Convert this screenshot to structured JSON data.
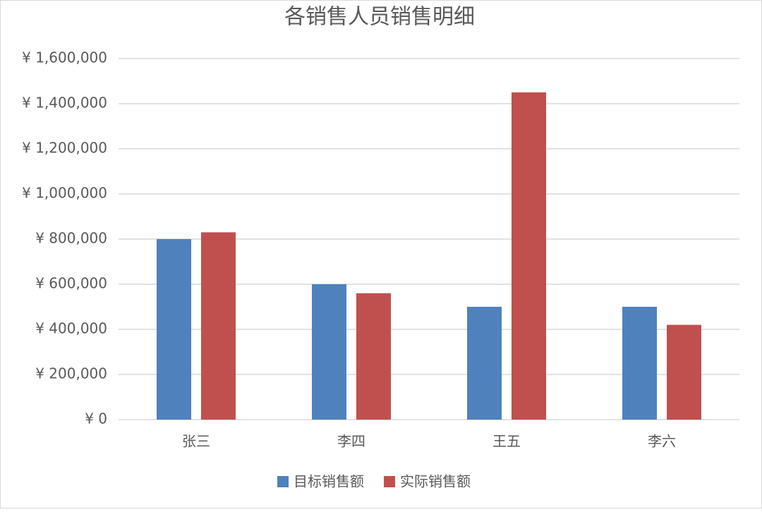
{
  "chart_data": {
    "type": "bar",
    "title": "各销售人员销售明细",
    "categories": [
      "张三",
      "李四",
      "王五",
      "李六"
    ],
    "series": [
      {
        "name": "目标销售额",
        "color": "#4f81bd",
        "values": [
          800000,
          600000,
          500000,
          500000
        ]
      },
      {
        "name": "实际销售额",
        "color": "#c0504d",
        "values": [
          830000,
          560000,
          1450000,
          420000
        ]
      }
    ],
    "ylim": [
      0,
      1600000
    ],
    "yticks": [
      {
        "value": 0,
        "label": "¥ 0"
      },
      {
        "value": 200000,
        "label": "¥ 200,000"
      },
      {
        "value": 400000,
        "label": "¥ 400,000"
      },
      {
        "value": 600000,
        "label": "¥ 600,000"
      },
      {
        "value": 800000,
        "label": "¥ 800,000"
      },
      {
        "value": 1000000,
        "label": "¥ 1,000,000"
      },
      {
        "value": 1200000,
        "label": "¥ 1,200,000"
      },
      {
        "value": 1400000,
        "label": "¥ 1,400,000"
      },
      {
        "value": 1600000,
        "label": "¥ 1,600,000"
      }
    ],
    "grid": true,
    "legend": "bottom"
  }
}
